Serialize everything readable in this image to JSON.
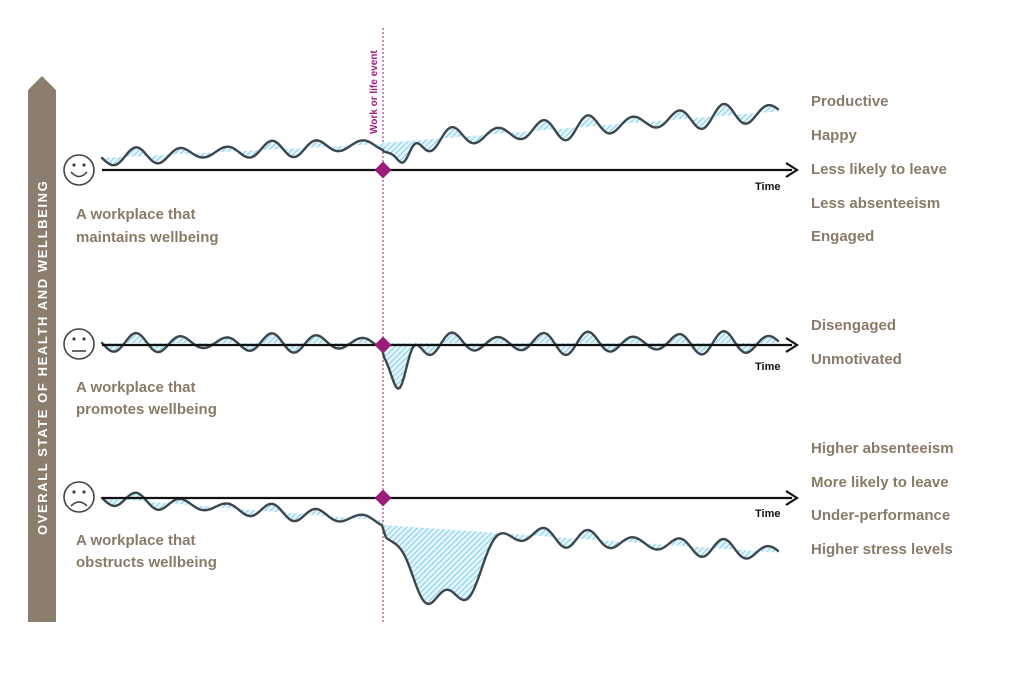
{
  "y_axis_label": "OVERALL STATE OF HEALTH AND WELLBEING",
  "event_label": "Work or life event",
  "time_label": "Time",
  "colors": {
    "axis_bar": "#8b7e6f",
    "label_text": "#8a7a68",
    "event_marker": "#9b1d7a",
    "wave_line": "#3d464c",
    "shade": "#8fd3ea"
  },
  "panels": [
    {
      "face_icon": "smiley-face-icon",
      "title_lines": [
        "A workplace that",
        "maintains wellbeing"
      ],
      "outcomes": [
        "Productive",
        "Happy",
        "Less likely to leave",
        "Less absenteeism",
        "Engaged"
      ]
    },
    {
      "face_icon": "neutral-face-icon",
      "title_lines": [
        "A workplace that",
        "promotes wellbeing"
      ],
      "outcomes": [
        "Disengaged",
        "Unmotivated"
      ]
    },
    {
      "face_icon": "sad-face-icon",
      "title_lines": [
        "A workplace that",
        "obstructs wellbeing"
      ],
      "outcomes": [
        "Higher absenteeism",
        "More likely to leave",
        "Under-performance",
        "Higher stress levels"
      ]
    }
  ]
}
